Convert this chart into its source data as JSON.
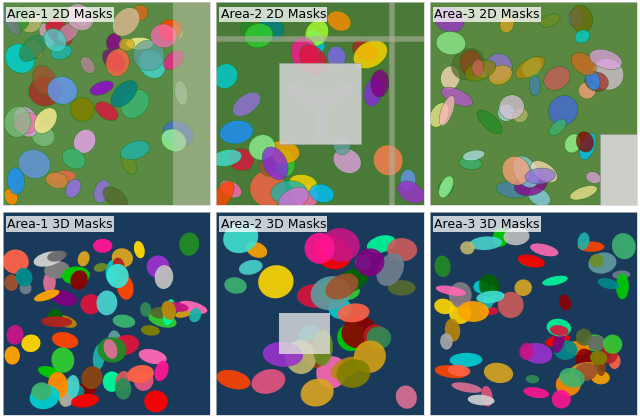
{
  "titles": [
    "Area-1 2D Masks",
    "Area-2 2D Masks",
    "Area-3 2D Masks",
    "Area-1 3D Masks",
    "Area-2 3D Masks",
    "Area-3 3D Masks"
  ],
  "title_fontsize": 9,
  "title_color": "black",
  "bg_color_2d": "#4a7c3f",
  "bg_color_3d": "#1a3a5c",
  "figure_bg": "#ffffff",
  "grid_rows": 2,
  "grid_cols": 3,
  "figsize": [
    6.4,
    4.17
  ],
  "dpi": 100
}
